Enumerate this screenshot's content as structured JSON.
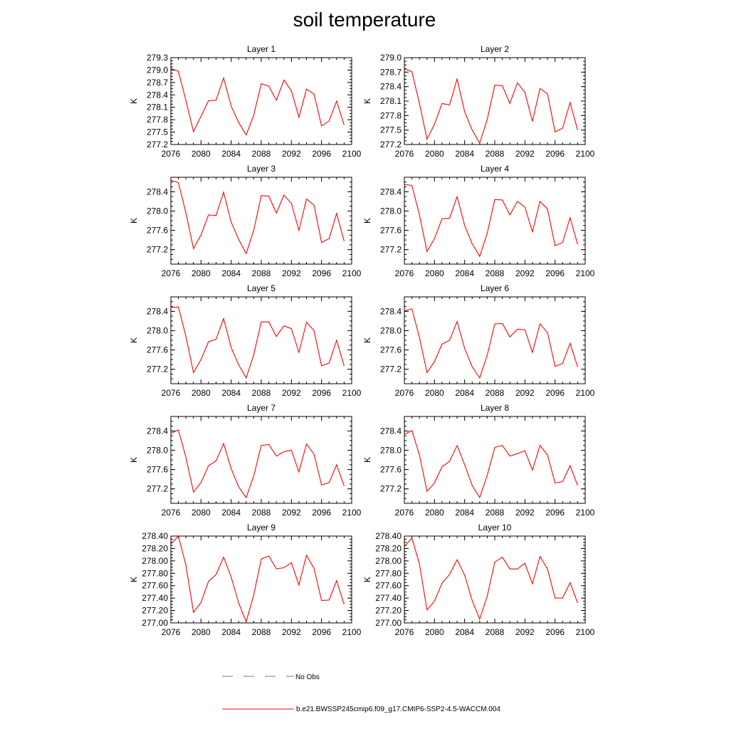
{
  "title": "soil temperature",
  "chart_data": [
    {
      "type": "line",
      "title": "Layer 1",
      "ylabel": "K",
      "xlim": [
        2076,
        2100
      ],
      "ylim": [
        277.2,
        279.3
      ],
      "xticks": [
        "2076",
        "2080",
        "2084",
        "2088",
        "2092",
        "2096",
        "2100"
      ],
      "yticks": [
        "277.2",
        "277.5",
        "277.8",
        "278.1",
        "278.4",
        "278.7",
        "279.0",
        "279.3"
      ],
      "x": [
        2076,
        2077,
        2078,
        2079,
        2080,
        2081,
        2082,
        2083,
        2084,
        2085,
        2086,
        2087,
        2088,
        2089,
        2090,
        2091,
        2092,
        2093,
        2094,
        2095,
        2096,
        2097,
        2098,
        2099
      ],
      "series": [
        {
          "name": "b.e21.BWSSP245cmip6.f09_g17.CMIP6-SSP2-4.5-WACCM.004",
          "values": [
            279.04,
            278.97,
            278.26,
            277.51,
            277.88,
            278.26,
            278.27,
            278.81,
            278.13,
            277.73,
            277.43,
            277.91,
            278.67,
            278.61,
            278.27,
            278.76,
            278.5,
            277.86,
            278.54,
            278.42,
            277.65,
            277.77,
            278.25,
            277.67
          ]
        }
      ]
    },
    {
      "type": "line",
      "title": "Layer 2",
      "ylabel": "K",
      "xlim": [
        2076,
        2100
      ],
      "ylim": [
        277.2,
        279.0
      ],
      "xticks": [
        "2076",
        "2080",
        "2084",
        "2088",
        "2092",
        "2096",
        "2100"
      ],
      "yticks": [
        "277.2",
        "277.5",
        "277.8",
        "278.1",
        "278.4",
        "278.7",
        "279.0"
      ],
      "x": [
        2076,
        2077,
        2078,
        2079,
        2080,
        2081,
        2082,
        2083,
        2084,
        2085,
        2086,
        2087,
        2088,
        2089,
        2090,
        2091,
        2092,
        2093,
        2094,
        2095,
        2096,
        2097,
        2098,
        2099
      ],
      "series": [
        {
          "name": "b.e21.BWSSP245cmip6.f09_g17.CMIP6-SSP2-4.5-WACCM.004",
          "values": [
            278.77,
            278.71,
            278.05,
            277.31,
            277.62,
            278.05,
            278.02,
            278.56,
            277.88,
            277.5,
            277.23,
            277.72,
            278.43,
            278.42,
            278.05,
            278.48,
            278.28,
            277.68,
            278.36,
            278.25,
            277.46,
            277.54,
            278.07,
            277.5
          ]
        }
      ]
    },
    {
      "type": "line",
      "title": "Layer 3",
      "ylabel": "K",
      "xlim": [
        2076,
        2100
      ],
      "ylim": [
        276.9,
        278.7
      ],
      "xticks": [
        "2076",
        "2080",
        "2084",
        "2088",
        "2092",
        "2096",
        "2100"
      ],
      "yticks": [
        "277.2",
        "277.6",
        "278.0",
        "278.4"
      ],
      "x": [
        2076,
        2077,
        2078,
        2079,
        2080,
        2081,
        2082,
        2083,
        2084,
        2085,
        2086,
        2087,
        2088,
        2089,
        2090,
        2091,
        2092,
        2093,
        2094,
        2095,
        2096,
        2097,
        2098,
        2099
      ],
      "series": [
        {
          "name": "b.e21.BWSSP245cmip6.f09_g17.CMIP6-SSP2-4.5-WACCM.004",
          "values": [
            278.64,
            278.59,
            277.96,
            277.22,
            277.5,
            277.92,
            277.91,
            278.39,
            277.77,
            277.41,
            277.12,
            277.6,
            278.32,
            278.31,
            277.96,
            278.33,
            278.16,
            277.6,
            278.25,
            278.12,
            277.35,
            277.43,
            277.95,
            277.38
          ]
        }
      ]
    },
    {
      "type": "line",
      "title": "Layer 4",
      "ylabel": "K",
      "xlim": [
        2076,
        2100
      ],
      "ylim": [
        276.9,
        278.7
      ],
      "xticks": [
        "2076",
        "2080",
        "2084",
        "2088",
        "2092",
        "2096",
        "2100"
      ],
      "yticks": [
        "277.2",
        "277.6",
        "278.0",
        "278.4"
      ],
      "x": [
        2076,
        2077,
        2078,
        2079,
        2080,
        2081,
        2082,
        2083,
        2084,
        2085,
        2086,
        2087,
        2088,
        2089,
        2090,
        2091,
        2092,
        2093,
        2094,
        2095,
        2096,
        2097,
        2098,
        2099
      ],
      "series": [
        {
          "name": "b.e21.BWSSP245cmip6.f09_g17.CMIP6-SSP2-4.5-WACCM.004",
          "values": [
            278.55,
            278.53,
            277.92,
            277.16,
            277.43,
            277.84,
            277.85,
            278.3,
            277.7,
            277.32,
            277.06,
            277.54,
            278.24,
            278.23,
            277.92,
            278.2,
            278.08,
            277.57,
            278.2,
            278.04,
            277.28,
            277.35,
            277.86,
            277.31
          ]
        }
      ]
    },
    {
      "type": "line",
      "title": "Layer 5",
      "ylabel": "K",
      "xlim": [
        2076,
        2100
      ],
      "ylim": [
        276.9,
        278.7
      ],
      "xticks": [
        "2076",
        "2080",
        "2084",
        "2088",
        "2092",
        "2096",
        "2100"
      ],
      "yticks": [
        "277.2",
        "277.6",
        "278.0",
        "278.4"
      ],
      "x": [
        2076,
        2077,
        2078,
        2079,
        2080,
        2081,
        2082,
        2083,
        2084,
        2085,
        2086,
        2087,
        2088,
        2089,
        2090,
        2091,
        2092,
        2093,
        2094,
        2095,
        2096,
        2097,
        2098,
        2099
      ],
      "series": [
        {
          "name": "b.e21.BWSSP245cmip6.f09_g17.CMIP6-SSP2-4.5-WACCM.004",
          "values": [
            278.48,
            278.49,
            277.88,
            277.13,
            277.4,
            277.77,
            277.82,
            278.25,
            277.65,
            277.29,
            277.02,
            277.5,
            278.18,
            278.18,
            277.88,
            278.1,
            278.04,
            277.55,
            278.17,
            278.0,
            277.27,
            277.33,
            277.8,
            277.27
          ]
        }
      ]
    },
    {
      "type": "line",
      "title": "Layer 6",
      "ylabel": "K",
      "xlim": [
        2076,
        2100
      ],
      "ylim": [
        276.9,
        278.7
      ],
      "xticks": [
        "2076",
        "2080",
        "2084",
        "2088",
        "2092",
        "2096",
        "2100"
      ],
      "yticks": [
        "277.2",
        "277.6",
        "278.0",
        "278.4"
      ],
      "x": [
        2076,
        2077,
        2078,
        2079,
        2080,
        2081,
        2082,
        2083,
        2084,
        2085,
        2086,
        2087,
        2088,
        2089,
        2090,
        2091,
        2092,
        2093,
        2094,
        2095,
        2096,
        2097,
        2098,
        2099
      ],
      "series": [
        {
          "name": "b.e21.BWSSP245cmip6.f09_g17.CMIP6-SSP2-4.5-WACCM.004",
          "values": [
            278.41,
            278.45,
            277.86,
            277.13,
            277.36,
            277.72,
            277.8,
            278.19,
            277.63,
            277.25,
            277.02,
            277.49,
            278.14,
            278.15,
            277.87,
            278.03,
            278.02,
            277.55,
            278.14,
            277.96,
            277.26,
            277.32,
            277.74,
            277.25
          ]
        }
      ]
    },
    {
      "type": "line",
      "title": "Layer 7",
      "ylabel": "K",
      "xlim": [
        2076,
        2100
      ],
      "ylim": [
        276.9,
        278.7
      ],
      "xticks": [
        "2076",
        "2080",
        "2084",
        "2088",
        "2092",
        "2096",
        "2100"
      ],
      "yticks": [
        "277.2",
        "277.6",
        "278.0",
        "278.4"
      ],
      "x": [
        2076,
        2077,
        2078,
        2079,
        2080,
        2081,
        2082,
        2083,
        2084,
        2085,
        2086,
        2087,
        2088,
        2089,
        2090,
        2091,
        2092,
        2093,
        2094,
        2095,
        2096,
        2097,
        2098,
        2099
      ],
      "series": [
        {
          "name": "b.e21.BWSSP245cmip6.f09_g17.CMIP6-SSP2-4.5-WACCM.004",
          "values": [
            278.35,
            278.42,
            277.85,
            277.13,
            277.33,
            277.68,
            277.78,
            278.14,
            277.62,
            277.24,
            277.02,
            277.47,
            278.1,
            278.12,
            277.88,
            277.97,
            278.0,
            277.55,
            278.13,
            277.92,
            277.28,
            277.33,
            277.7,
            277.26
          ]
        }
      ]
    },
    {
      "type": "line",
      "title": "Layer 8",
      "ylabel": "K",
      "xlim": [
        2076,
        2100
      ],
      "ylim": [
        276.9,
        278.7
      ],
      "xticks": [
        "2076",
        "2080",
        "2084",
        "2088",
        "2092",
        "2096",
        "2100"
      ],
      "yticks": [
        "277.2",
        "277.6",
        "278.0",
        "278.4"
      ],
      "x": [
        2076,
        2077,
        2078,
        2079,
        2080,
        2081,
        2082,
        2083,
        2084,
        2085,
        2086,
        2087,
        2088,
        2089,
        2090,
        2091,
        2092,
        2093,
        2094,
        2095,
        2096,
        2097,
        2098,
        2099
      ],
      "series": [
        {
          "name": "b.e21.BWSSP245cmip6.f09_g17.CMIP6-SSP2-4.5-WACCM.004",
          "values": [
            278.33,
            278.41,
            277.9,
            277.15,
            277.32,
            277.66,
            277.77,
            278.1,
            277.7,
            277.27,
            277.02,
            277.48,
            278.06,
            278.1,
            277.88,
            277.93,
            277.99,
            277.59,
            278.1,
            277.9,
            277.32,
            277.35,
            277.68,
            277.27
          ]
        }
      ]
    },
    {
      "type": "line",
      "title": "Layer 9",
      "ylabel": "K",
      "xlim": [
        2076,
        2100
      ],
      "ylim": [
        277.0,
        278.4
      ],
      "xticks": [
        "2076",
        "2080",
        "2084",
        "2088",
        "2092",
        "2096",
        "2100"
      ],
      "yticks": [
        "277.00",
        "277.20",
        "277.40",
        "277.60",
        "277.80",
        "278.00",
        "278.20",
        "278.40"
      ],
      "x": [
        2076,
        2077,
        2078,
        2079,
        2080,
        2081,
        2082,
        2083,
        2084,
        2085,
        2086,
        2087,
        2088,
        2089,
        2090,
        2091,
        2092,
        2093,
        2094,
        2095,
        2096,
        2097,
        2098,
        2099
      ],
      "series": [
        {
          "name": "b.e21.BWSSP245cmip6.f09_g17.CMIP6-SSP2-4.5-WACCM.004",
          "values": [
            278.27,
            278.4,
            277.93,
            277.17,
            277.33,
            277.67,
            277.78,
            278.06,
            277.74,
            277.32,
            277.02,
            277.45,
            278.03,
            278.08,
            277.87,
            277.89,
            277.97,
            277.61,
            278.09,
            277.88,
            277.36,
            277.37,
            277.68,
            277.3
          ]
        }
      ]
    },
    {
      "type": "line",
      "title": "Layer 10",
      "ylabel": "K",
      "xlim": [
        2076,
        2100
      ],
      "ylim": [
        277.0,
        278.4
      ],
      "xticks": [
        "2076",
        "2080",
        "2084",
        "2088",
        "2092",
        "2096",
        "2100"
      ],
      "yticks": [
        "277.00",
        "277.20",
        "277.40",
        "277.60",
        "277.80",
        "278.00",
        "278.20",
        "278.40"
      ],
      "x": [
        2076,
        2077,
        2078,
        2079,
        2080,
        2081,
        2082,
        2083,
        2084,
        2085,
        2086,
        2087,
        2088,
        2089,
        2090,
        2091,
        2092,
        2093,
        2094,
        2095,
        2096,
        2097,
        2098,
        2099
      ],
      "series": [
        {
          "name": "b.e21.BWSSP245cmip6.f09_g17.CMIP6-SSP2-4.5-WACCM.004",
          "values": [
            278.23,
            278.37,
            277.95,
            277.21,
            277.35,
            277.64,
            277.78,
            278.02,
            277.77,
            277.36,
            277.06,
            277.43,
            277.98,
            278.06,
            277.87,
            277.87,
            277.96,
            277.63,
            278.07,
            277.87,
            277.4,
            277.4,
            277.65,
            277.32
          ]
        }
      ]
    }
  ],
  "legend": [
    {
      "label": "No Obs",
      "color": "#6f6fcf",
      "style": "dashed"
    },
    {
      "label": "b.e21.BWSSP245cmip6.f09_g17.CMIP6-SSP2-4.5-WACCM.004",
      "color": "#ff0000",
      "style": "solid"
    }
  ],
  "colors": {
    "series": "#ff0000",
    "obs": "#6f6fcf",
    "axis": "#000000"
  }
}
